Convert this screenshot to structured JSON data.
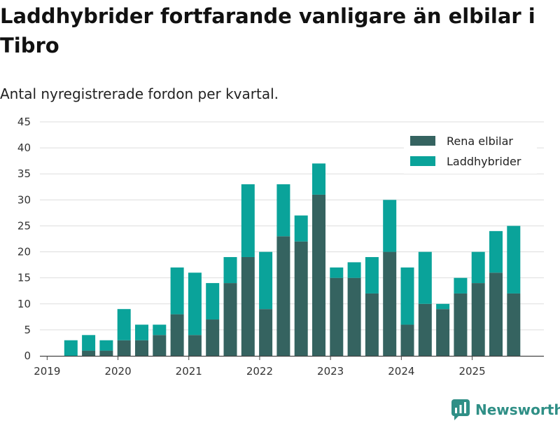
{
  "title": "Laddhybrider fortfarande vanligare än elbilar i Tibro",
  "subtitle": "Antal nyregistrerade fordon per kvartal.",
  "brand": {
    "name": "Newsworthy",
    "icon": "newsworthy-logo-icon"
  },
  "colors": {
    "elbilar": "#356360",
    "laddhybrider": "#0aa39a",
    "grid": "#dddddd",
    "axis": "#444444"
  },
  "chart_data": {
    "type": "bar",
    "stacked": true,
    "title": "Laddhybrider fortfarande vanligare än elbilar i Tibro",
    "subtitle": "Antal nyregistrerade fordon per kvartal.",
    "xlabel": "",
    "ylabel": "",
    "ylim": [
      0,
      45
    ],
    "yticks": [
      0,
      5,
      10,
      15,
      20,
      25,
      30,
      35,
      40,
      45
    ],
    "legend_position": "top-right",
    "grid": true,
    "xticks": [
      {
        "label": "2019",
        "quarter_index": 0
      },
      {
        "label": "2020",
        "quarter_index": 4
      },
      {
        "label": "2021",
        "quarter_index": 8
      },
      {
        "label": "2022",
        "quarter_index": 12
      },
      {
        "label": "2023",
        "quarter_index": 16
      },
      {
        "label": "2024",
        "quarter_index": 20
      },
      {
        "label": "2025",
        "quarter_index": 24
      }
    ],
    "categories": [
      "2019 Q1",
      "2019 Q2",
      "2019 Q3",
      "2019 Q4",
      "2020 Q1",
      "2020 Q2",
      "2020 Q3",
      "2020 Q4",
      "2021 Q1",
      "2021 Q2",
      "2021 Q3",
      "2021 Q4",
      "2022 Q1",
      "2022 Q2",
      "2022 Q3",
      "2022 Q4",
      "2023 Q1",
      "2023 Q2",
      "2023 Q3",
      "2023 Q4",
      "2024 Q1",
      "2024 Q2",
      "2024 Q3",
      "2024 Q4",
      "2025 Q1",
      "2025 Q2",
      "2025 Q3"
    ],
    "series": [
      {
        "name": "Rena elbilar",
        "color": "#356360",
        "values": [
          0,
          0,
          1,
          1,
          3,
          3,
          4,
          8,
          4,
          7,
          14,
          19,
          9,
          23,
          22,
          31,
          15,
          15,
          12,
          20,
          6,
          10,
          9,
          12,
          14,
          16,
          12
        ]
      },
      {
        "name": "Laddhybrider",
        "color": "#0aa39a",
        "values": [
          0,
          3,
          3,
          2,
          6,
          3,
          2,
          9,
          12,
          7,
          5,
          14,
          11,
          10,
          5,
          6,
          2,
          3,
          7,
          10,
          11,
          10,
          1,
          3,
          6,
          8,
          13
        ]
      }
    ]
  }
}
